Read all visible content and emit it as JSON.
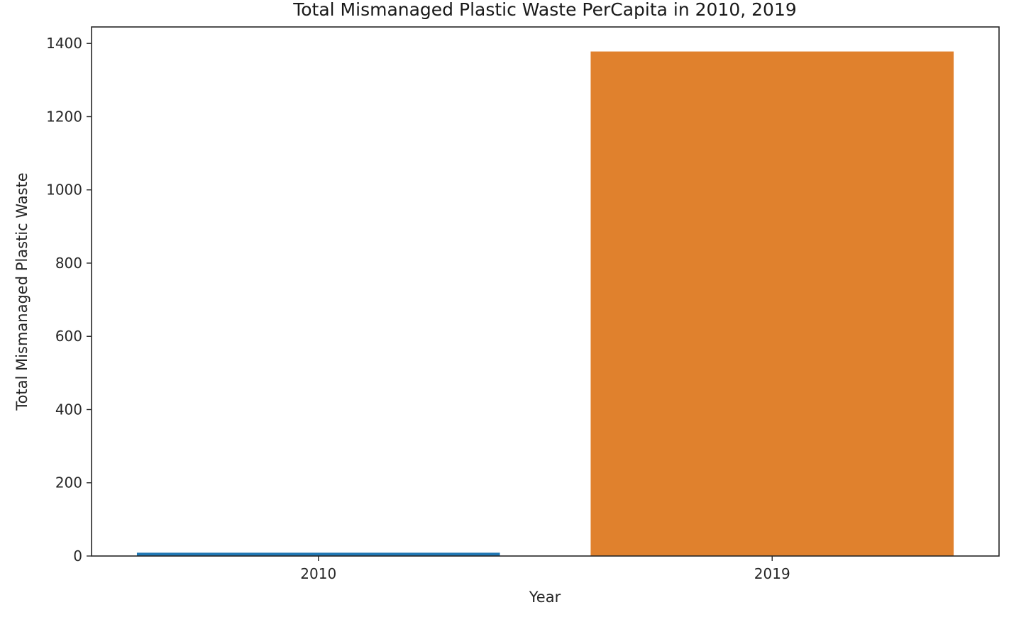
{
  "chart_data": {
    "type": "bar",
    "title": "Total Mismanaged Plastic Waste PerCapita in 2010, 2019",
    "xlabel": "Year",
    "ylabel": "Total Mismanaged Plastic Waste",
    "categories": [
      "2010",
      "2019"
    ],
    "values": [
      9,
      1378
    ],
    "colors": [
      "#1f77b4",
      "#e0812d"
    ],
    "ylim": [
      0,
      1445
    ],
    "yticks": [
      0,
      200,
      400,
      600,
      800,
      1000,
      1200,
      1400
    ],
    "grid": false,
    "legend": "none"
  }
}
